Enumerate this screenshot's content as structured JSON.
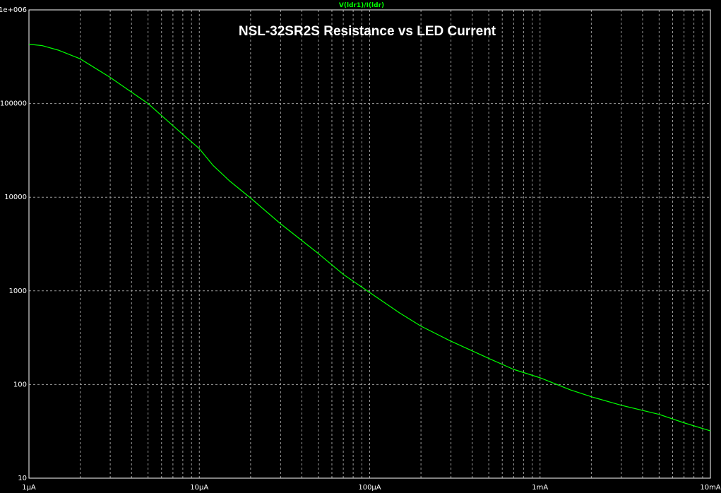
{
  "chart_data": {
    "type": "line",
    "title": "NSL-32SR2S  Resistance vs LED Current",
    "xlabel": "",
    "ylabel": "",
    "x_scale": "log",
    "y_scale": "log",
    "xlim": [
      1e-06,
      0.01
    ],
    "ylim": [
      10,
      1000000
    ],
    "grid": true,
    "legend_position": "top-center",
    "x_ticks": [
      {
        "value": 1e-06,
        "label": "1µA"
      },
      {
        "value": 1e-05,
        "label": "10µA"
      },
      {
        "value": 0.0001,
        "label": "100µA"
      },
      {
        "value": 0.001,
        "label": "1mA"
      },
      {
        "value": 0.01,
        "label": "10mA"
      }
    ],
    "y_ticks": [
      {
        "value": 1000000,
        "label": "1e+006"
      },
      {
        "value": 100000,
        "label": "100000"
      },
      {
        "value": 10000,
        "label": "10000"
      },
      {
        "value": 1000,
        "label": "1000"
      },
      {
        "value": 100,
        "label": "100"
      },
      {
        "value": 10,
        "label": "10"
      }
    ],
    "series": [
      {
        "name": "V(ldr1)/I(ldr)",
        "color": "#00ff00",
        "x": [
          1e-06,
          1.2e-06,
          1.5e-06,
          2e-06,
          3e-06,
          5e-06,
          7e-06,
          1e-05,
          1.2e-05,
          1.5e-05,
          2e-05,
          3e-05,
          5e-05,
          7e-05,
          0.0001,
          0.00015,
          0.0002,
          0.0003,
          0.0005,
          0.0007,
          0.001,
          0.0015,
          0.002,
          0.003,
          0.005,
          0.007,
          0.01
        ],
        "y": [
          430000,
          415000,
          370000,
          300000,
          190000,
          100000,
          58000,
          33000,
          22000,
          15000,
          9800,
          5200,
          2500,
          1500,
          960,
          580,
          420,
          290,
          190,
          145,
          118,
          88,
          74,
          60,
          48,
          39,
          32
        ]
      }
    ]
  }
}
